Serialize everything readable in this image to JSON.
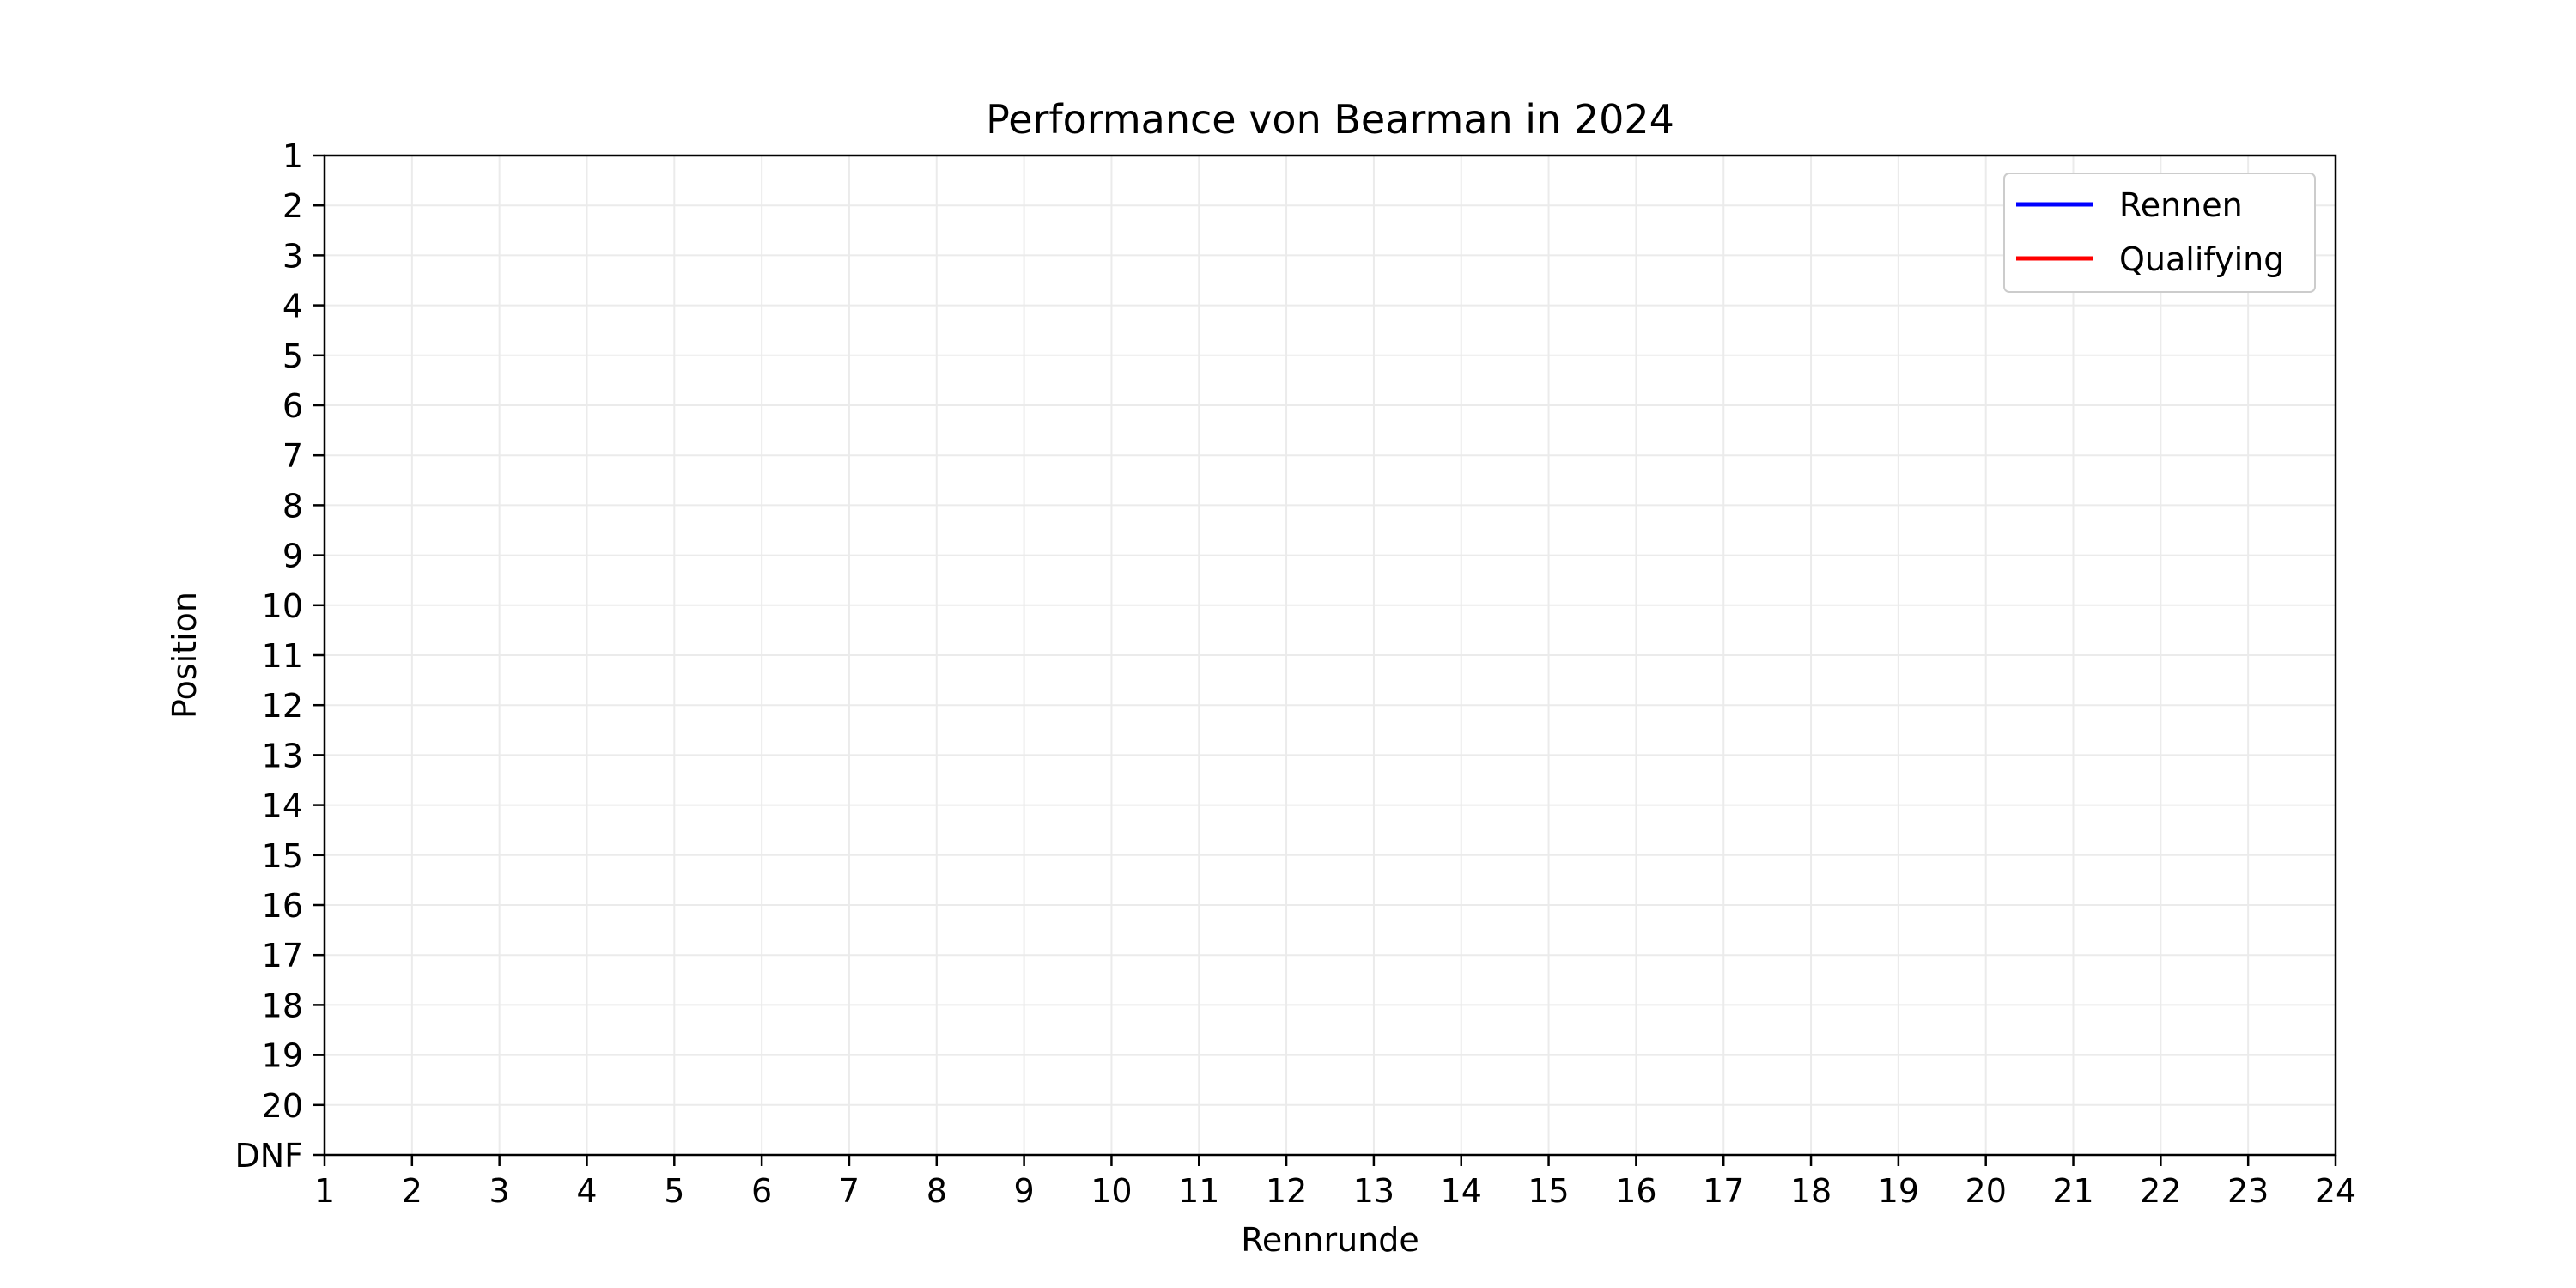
{
  "chart_data": {
    "type": "line",
    "title": "Performance von Bearman in 2024",
    "xlabel": "Rennrunde",
    "ylabel": "Position",
    "xlim": [
      1,
      24
    ],
    "ylim": [
      1,
      21
    ],
    "y_inverted": true,
    "x_ticks": [
      "1",
      "2",
      "3",
      "4",
      "5",
      "6",
      "7",
      "8",
      "9",
      "10",
      "11",
      "12",
      "13",
      "14",
      "15",
      "16",
      "17",
      "18",
      "19",
      "20",
      "21",
      "22",
      "23",
      "24"
    ],
    "y_ticks": [
      {
        "value": 1,
        "label": "1"
      },
      {
        "value": 2,
        "label": "2"
      },
      {
        "value": 3,
        "label": "3"
      },
      {
        "value": 4,
        "label": "4"
      },
      {
        "value": 5,
        "label": "5"
      },
      {
        "value": 6,
        "label": "6"
      },
      {
        "value": 7,
        "label": "7"
      },
      {
        "value": 8,
        "label": "8"
      },
      {
        "value": 9,
        "label": "9"
      },
      {
        "value": 10,
        "label": "10"
      },
      {
        "value": 11,
        "label": "11"
      },
      {
        "value": 12,
        "label": "12"
      },
      {
        "value": 13,
        "label": "13"
      },
      {
        "value": 14,
        "label": "14"
      },
      {
        "value": 15,
        "label": "15"
      },
      {
        "value": 16,
        "label": "16"
      },
      {
        "value": 17,
        "label": "17"
      },
      {
        "value": 18,
        "label": "18"
      },
      {
        "value": 19,
        "label": "19"
      },
      {
        "value": 20,
        "label": "20"
      },
      {
        "value": 21,
        "label": "DNF"
      }
    ],
    "grid": true,
    "legend_position": "top-right",
    "series": [
      {
        "name": "Rennen",
        "color": "#0000ff",
        "points": []
      },
      {
        "name": "Qualifying",
        "color": "#ff0000",
        "points": []
      }
    ]
  }
}
